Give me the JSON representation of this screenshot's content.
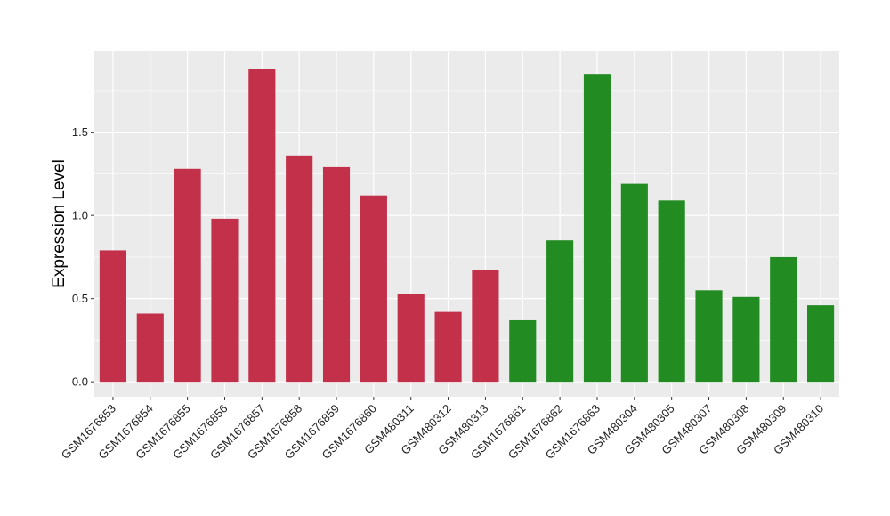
{
  "chart_data": {
    "type": "bar",
    "title": "",
    "xlabel": "",
    "ylabel": "Expression Level",
    "ylim": [
      -0.09,
      1.99
    ],
    "yticks": [
      0.0,
      0.5,
      1.0,
      1.5
    ],
    "ytick_labels": [
      "0.0",
      "0.5",
      "1.0",
      "1.5"
    ],
    "grid": true,
    "legend": "none",
    "categories": [
      "GSM1676853",
      "GSM1676854",
      "GSM1676855",
      "GSM1676856",
      "GSM1676857",
      "GSM1676858",
      "GSM1676859",
      "GSM1676860",
      "GSM480311",
      "GSM480312",
      "GSM480313",
      "GSM1676861",
      "GSM1676862",
      "GSM1676863",
      "GSM480304",
      "GSM480305",
      "GSM480307",
      "GSM480308",
      "GSM480309",
      "GSM480310"
    ],
    "values": [
      0.79,
      0.41,
      1.28,
      0.98,
      1.88,
      1.36,
      1.29,
      1.12,
      0.53,
      0.42,
      0.67,
      0.37,
      0.85,
      1.85,
      1.19,
      1.09,
      0.55,
      0.51,
      0.75,
      0.46
    ],
    "bar_colors": [
      "#c3304a",
      "#c3304a",
      "#c3304a",
      "#c3304a",
      "#c3304a",
      "#c3304a",
      "#c3304a",
      "#c3304a",
      "#c3304a",
      "#c3304a",
      "#c3304a",
      "#228b22",
      "#228b22",
      "#228b22",
      "#228b22",
      "#228b22",
      "#228b22",
      "#228b22",
      "#228b22",
      "#228b22"
    ]
  },
  "colors": {
    "panel_background": "#ebebeb",
    "grid_major": "#ffffff",
    "group_a": "#c3304a",
    "group_b": "#228b22"
  }
}
